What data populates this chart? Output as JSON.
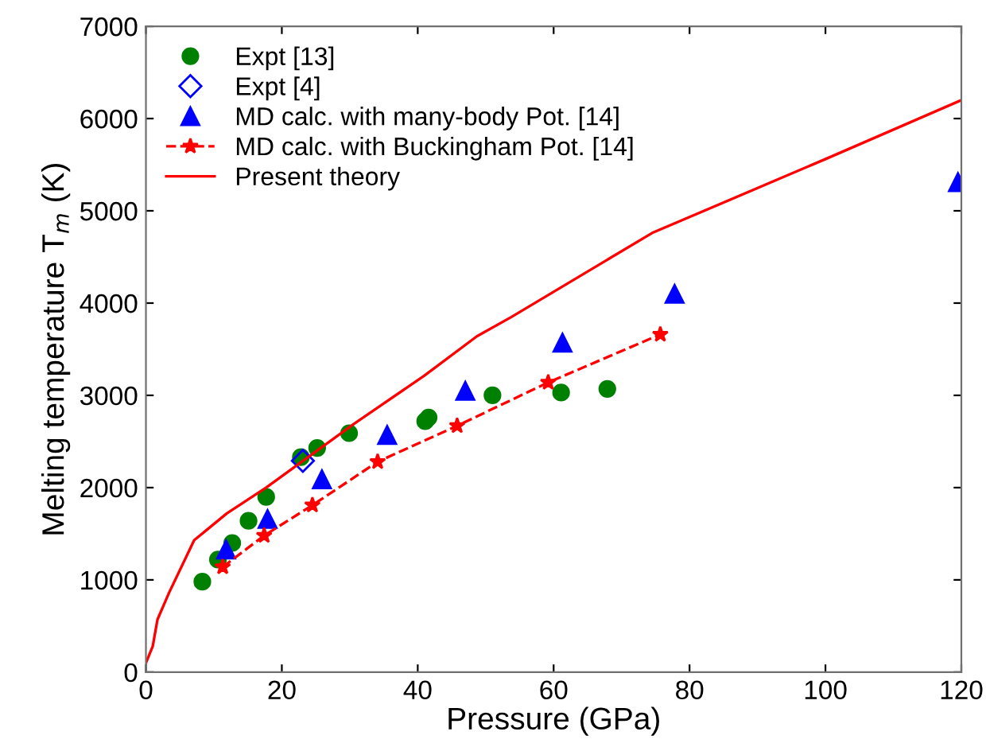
{
  "chart_data": {
    "type": "scatter",
    "xlabel": "Pressure (GPa)",
    "ylabel": "Melting temperature T$_{m}$ (K)",
    "xlim": [
      0,
      120
    ],
    "ylim": [
      0,
      7000
    ],
    "xticks": [
      0,
      20,
      40,
      60,
      80,
      100,
      120
    ],
    "yticks": [
      0,
      1000,
      2000,
      3000,
      4000,
      5000,
      6000,
      7000
    ],
    "grid": false,
    "legend": "top left",
    "series": [
      {
        "name": "Expt [13]",
        "marker": "circle",
        "color": "#008000",
        "x": [
          8.3,
          10.6,
          12.7,
          15.1,
          17.7,
          22.8,
          25.2,
          29.9,
          41.1,
          41.6,
          51.0,
          61.1,
          67.9
        ],
        "values": [
          980,
          1220,
          1400,
          1640,
          1900,
          2330,
          2430,
          2590,
          2720,
          2760,
          3000,
          3030,
          3070
        ]
      },
      {
        "name": "Expt [4]",
        "marker": "diamond",
        "color": "#0000ff",
        "x": [
          23.1
        ],
        "values": [
          2290
        ]
      },
      {
        "name": "MD calc. with many-body Pot. [14]",
        "marker": "triangle",
        "color": "#0000ff",
        "x": [
          11.8,
          17.9,
          25.9,
          35.5,
          47.0,
          61.3,
          77.8,
          119.5
        ],
        "values": [
          1330,
          1660,
          2090,
          2570,
          3050,
          3570,
          4100,
          5310
        ]
      },
      {
        "name": "MD calc. with Buckingham Pot. [14]",
        "type": "line",
        "marker": "star",
        "line_style": "dashed",
        "color": "#ff0000",
        "x": [
          11.3,
          17.4,
          24.5,
          34.1,
          45.8,
          59.2,
          75.7
        ],
        "values": [
          1140,
          1480,
          1810,
          2280,
          2670,
          3140,
          3660
        ]
      },
      {
        "name": "Present theory",
        "type": "line",
        "marker": "none",
        "line_style": "solid",
        "color": "#ff0000",
        "x": [
          0,
          1.0,
          1.7,
          3.4,
          7.1,
          11.9,
          17.7,
          30.6,
          40.9,
          48.7,
          53.8,
          74.5,
          100.3,
          120
        ],
        "values": [
          100,
          280,
          570,
          860,
          1430,
          1720,
          2000,
          2690,
          3210,
          3640,
          3850,
          4760,
          5570,
          6200
        ]
      }
    ]
  }
}
